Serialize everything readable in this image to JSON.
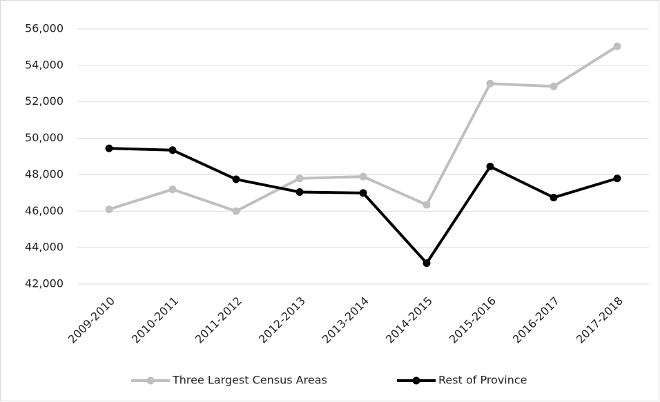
{
  "chart_data": {
    "type": "line",
    "categories": [
      "2009-2010",
      "2010-2011",
      "2011-2012",
      "2012-2013",
      "2013-2014",
      "2014-2015",
      "2015-2016",
      "2016-2017",
      "2017-2018"
    ],
    "series": [
      {
        "name": "Three Largest Census Areas",
        "color": "#bfbfbf",
        "values": [
          46100,
          47200,
          46000,
          47800,
          47900,
          46350,
          53000,
          52850,
          55050
        ]
      },
      {
        "name": "Rest of Province",
        "color": "#000000",
        "values": [
          49450,
          49350,
          47750,
          47050,
          47000,
          43150,
          48450,
          46750,
          47800
        ]
      }
    ],
    "ylim": [
      42000,
      56000
    ],
    "yticks": [
      {
        "value": 42000,
        "label": "42,000"
      },
      {
        "value": 44000,
        "label": "44,000"
      },
      {
        "value": 46000,
        "label": "46,000"
      },
      {
        "value": 48000,
        "label": "48,000"
      },
      {
        "value": 50000,
        "label": "50,000"
      },
      {
        "value": 52000,
        "label": "52,000"
      },
      {
        "value": 54000,
        "label": "54,000"
      },
      {
        "value": 56000,
        "label": "56,000"
      }
    ],
    "grid": true,
    "legend": "bottom"
  }
}
